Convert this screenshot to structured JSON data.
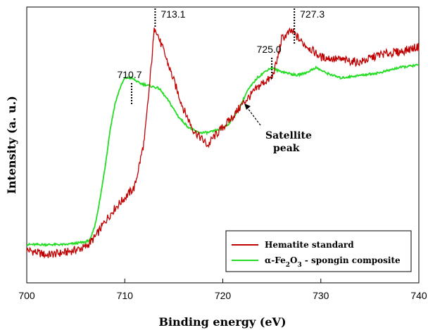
{
  "chart_data": {
    "type": "line",
    "xlabel": "Binding energy (eV)",
    "ylabel": "Intensity (a. u.)",
    "xlim": [
      700,
      740
    ],
    "ylim": [
      0,
      1
    ],
    "x_ticks": [
      "700",
      "710",
      "720",
      "730",
      "740"
    ],
    "y_ticks_shown": false,
    "grid": false,
    "legend_position": "bottom-right",
    "colors": {
      "hematite": "#c00000",
      "composite": "#22dd22"
    },
    "series": [
      {
        "name": "Hematite standard",
        "color": "#c00000",
        "x": [
          700,
          702,
          704,
          706,
          707,
          708,
          709,
          710,
          711,
          712,
          712.5,
          713,
          713.1,
          713.5,
          714,
          715,
          716,
          717,
          718,
          718.5,
          719,
          720,
          721,
          722,
          723,
          724,
          725,
          725.5,
          726,
          727,
          727.3,
          728,
          729,
          730,
          732,
          734,
          736,
          738,
          740
        ],
        "y": [
          0.1,
          0.08,
          0.09,
          0.11,
          0.15,
          0.21,
          0.26,
          0.3,
          0.34,
          0.52,
          0.72,
          0.94,
          0.96,
          0.91,
          0.86,
          0.75,
          0.64,
          0.56,
          0.52,
          0.5,
          0.53,
          0.57,
          0.61,
          0.66,
          0.7,
          0.74,
          0.76,
          0.82,
          0.91,
          0.94,
          0.93,
          0.9,
          0.87,
          0.84,
          0.83,
          0.82,
          0.85,
          0.86,
          0.88
        ]
      },
      {
        "name": "α-Fe₂O₃ - spongin composite",
        "color": "#22dd22",
        "x": [
          700,
          702,
          704,
          706,
          706.5,
          707,
          707.5,
          708,
          708.5,
          709,
          709.5,
          710,
          710.7,
          711.5,
          712.5,
          713.5,
          714.5,
          715.5,
          716.5,
          717.5,
          718.5,
          719.5,
          720.5,
          721.5,
          722.5,
          723.5,
          724.5,
          725,
          725.5,
          726.5,
          727.5,
          728.5,
          729.5,
          730.5,
          732,
          734,
          736,
          738,
          740
        ],
        "y": [
          0.12,
          0.12,
          0.12,
          0.13,
          0.14,
          0.2,
          0.3,
          0.42,
          0.56,
          0.66,
          0.72,
          0.76,
          0.76,
          0.74,
          0.73,
          0.72,
          0.67,
          0.61,
          0.57,
          0.55,
          0.55,
          0.56,
          0.58,
          0.63,
          0.71,
          0.76,
          0.79,
          0.8,
          0.79,
          0.78,
          0.77,
          0.78,
          0.8,
          0.78,
          0.76,
          0.77,
          0.78,
          0.8,
          0.81
        ]
      }
    ],
    "annotations": [
      {
        "text": "713.1",
        "x": 713.1
      },
      {
        "text": "710.7",
        "x": 710.7
      },
      {
        "text": "725.0",
        "x": 725.0
      },
      {
        "text": "727.3",
        "x": 727.3
      }
    ],
    "satellite": {
      "line1": "Satellite",
      "line2": "peak"
    },
    "legend": {
      "hematite": "Hematite standard",
      "composite_prefix": "α-Fe",
      "composite_sub1": "2",
      "composite_mid": "O",
      "composite_sub2": "3",
      "composite_suffix": " - spongin composite"
    }
  }
}
